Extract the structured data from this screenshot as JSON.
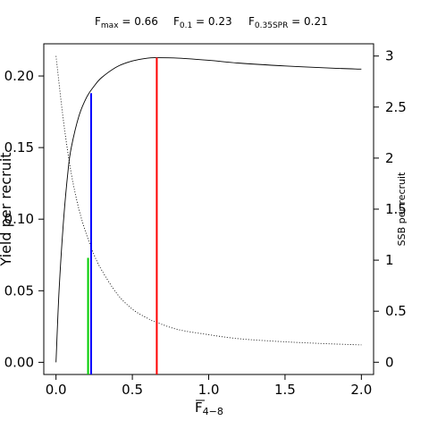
{
  "chart_data": {
    "type": "line",
    "title": {
      "fmax": {
        "sym": "F",
        "sub": "max",
        "rest": " = 0.66"
      },
      "f01": {
        "sym": "F",
        "sub": "0.1",
        "rest": " = 0.23"
      },
      "f35": {
        "sym": "F",
        "sub": "0.35SPR",
        "rest": " = 0.21"
      }
    },
    "xlabel": {
      "sym": "F",
      "sub": "4−8"
    },
    "ylabel_left": "Yield per recruit",
    "ylabel_right": "SSB per recruit",
    "xlim": [
      -0.08,
      2.08
    ],
    "ylim_left": [
      -0.0085,
      0.2225
    ],
    "ylim_right": [
      -0.12,
      3.12
    ],
    "x_ticks": [
      "0.0",
      "0.5",
      "1.0",
      "1.5",
      "2.0"
    ],
    "y_left_ticks": [
      "0.00",
      "0.05",
      "0.10",
      "0.15",
      "0.20"
    ],
    "y_right_ticks": [
      "0",
      "0.5",
      "1",
      "1.5",
      "2",
      "2.5",
      "3"
    ],
    "series": [
      {
        "axis": "left",
        "style": "solid",
        "color": "#000000",
        "x": [
          0,
          0.02,
          0.05,
          0.08,
          0.1,
          0.15,
          0.2,
          0.25,
          0.3,
          0.4,
          0.5,
          0.6,
          0.66,
          0.8,
          1.0,
          1.2,
          1.5,
          1.8,
          2.0
        ],
        "y": [
          0,
          0.05,
          0.1,
          0.135,
          0.15,
          0.172,
          0.185,
          0.193,
          0.199,
          0.2065,
          0.2105,
          0.2125,
          0.2128,
          0.2125,
          0.211,
          0.209,
          0.207,
          0.2055,
          0.2048
        ]
      },
      {
        "axis": "right",
        "style": "dotted",
        "color": "#000000",
        "x": [
          0,
          0.05,
          0.1,
          0.15,
          0.2,
          0.25,
          0.3,
          0.4,
          0.5,
          0.6,
          0.66,
          0.8,
          1.0,
          1.2,
          1.5,
          1.8,
          2.0
        ],
        "y": [
          3.0,
          2.35,
          1.85,
          1.5,
          1.25,
          1.05,
          0.9,
          0.67,
          0.52,
          0.43,
          0.39,
          0.32,
          0.27,
          0.23,
          0.2,
          0.18,
          0.17
        ]
      }
    ],
    "reference_lines": [
      {
        "name": "F0.35SPR",
        "x": 0.21,
        "y_left": 0.073,
        "color": "#00d000"
      },
      {
        "name": "F0.1",
        "x": 0.23,
        "y_left": 0.188,
        "color": "#0000ff"
      },
      {
        "name": "Fmax",
        "x": 0.66,
        "y_left": 0.2128,
        "color": "#ff0000"
      }
    ]
  }
}
